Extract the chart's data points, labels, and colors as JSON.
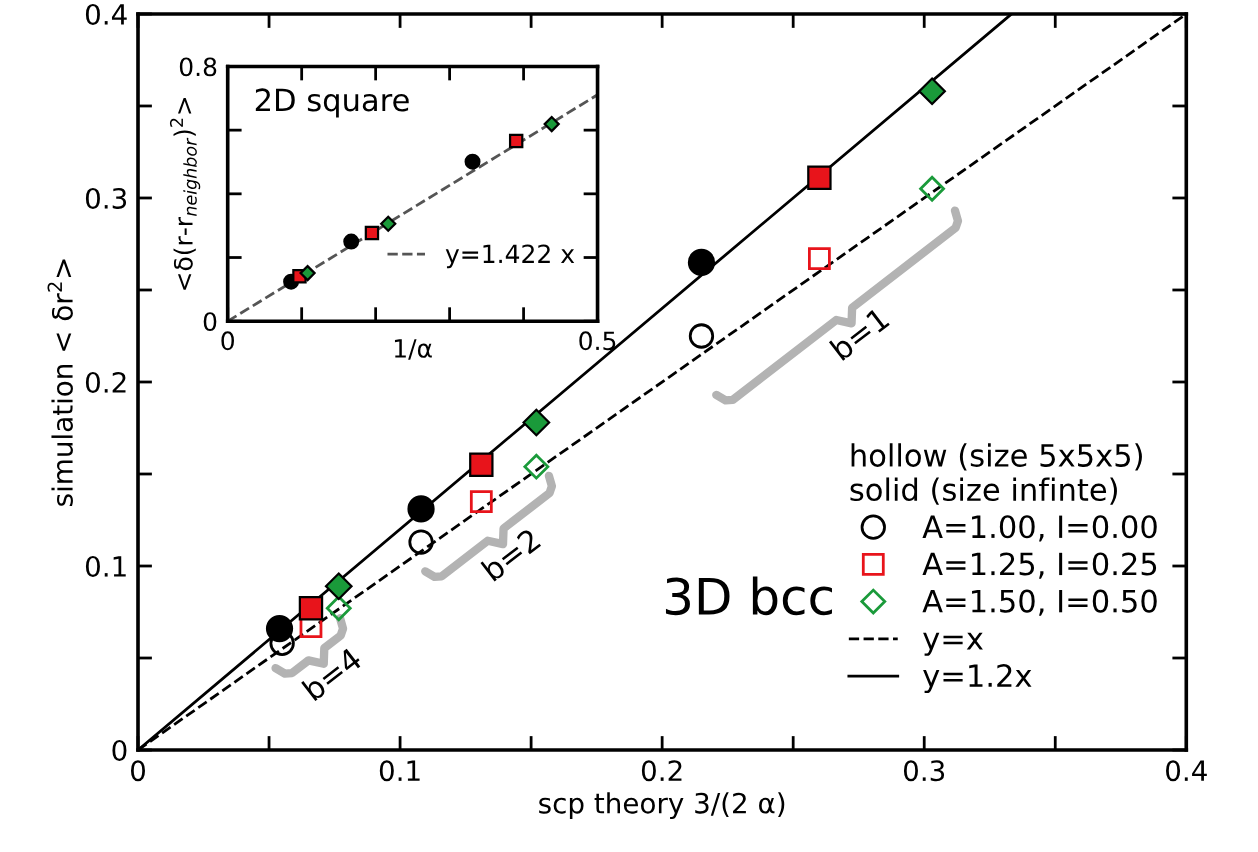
{
  "chart_data": [
    {
      "type": "scatter",
      "xlabel": "scp theory 3/(2 α)",
      "ylabel": "simulation < δr$^{2}$>",
      "legend_title": "hollow (size 5x5x5)\nsolid (size infinte)",
      "xlim": [
        0,
        0.4
      ],
      "ylim": [
        0,
        0.4
      ],
      "xticks": [
        0,
        {
          "value": 0.05,
          "label": null
        },
        0.1,
        {
          "value": 0.15,
          "label": null
        },
        0.2,
        {
          "value": 0.25,
          "label": null
        },
        0.3,
        {
          "value": 0.35,
          "label": null
        },
        0.4
      ],
      "yticks": [
        0,
        {
          "value": 0.05,
          "label": null
        },
        0.1,
        {
          "value": 0.15,
          "label": null
        },
        0.2,
        {
          "value": 0.25,
          "label": null
        },
        0.3,
        {
          "value": 0.35,
          "label": null
        },
        0.4
      ],
      "legend": "bottom right",
      "annotations": [
        "3D bcc",
        "b=4",
        "b=2",
        "b=1"
      ],
      "series": [
        {
          "name": "A=1.00, I=0.00",
          "color": "#000000",
          "marker": "circle",
          "x": [
            0.055,
            0.108,
            0.215
          ],
          "values": [
            0.058,
            0.113,
            0.225
          ]
        },
        {
          "name": "A=1.25, I=0.25",
          "color": "#e8141b",
          "marker": "square",
          "x": [
            0.066,
            0.131,
            0.26
          ],
          "values": [
            0.067,
            0.135,
            0.267
          ]
        },
        {
          "name": "A=1.50, I=0.50",
          "color": "#1a9a3a",
          "marker": "diamond",
          "x": [
            0.0766,
            0.152,
            0.303
          ],
          "values": [
            0.077,
            0.154,
            0.305
          ]
        },
        {
          "color": "#000000",
          "marker": "circle",
          "x": [
            0.054,
            0.108,
            0.215
          ],
          "values": [
            0.066,
            0.131,
            0.265
          ]
        },
        {
          "color": "#e8141b",
          "marker": "square",
          "x": [
            0.066,
            0.131,
            0.26
          ],
          "values": [
            0.077,
            0.155,
            0.311
          ]
        },
        {
          "color": "#1a9a3a",
          "marker": "diamond",
          "x": [
            0.0766,
            0.152,
            0.303
          ],
          "values": [
            0.089,
            0.178,
            0.358
          ]
        },
        {
          "name": "y=x",
          "type": "line",
          "color": "#000000",
          "line_style": "dashed",
          "marker": "none",
          "x": [
            0,
            0.4
          ],
          "values": [
            0,
            0.4
          ]
        },
        {
          "name": "y=1.2x",
          "type": "line",
          "color": "#000000",
          "line_style": "solid",
          "marker": "none",
          "x": [
            0,
            0.3333
          ],
          "values": [
            0,
            0.4
          ]
        }
      ]
    },
    {
      "type": "scatter",
      "xlabel": "1/α",
      "ylabel": "<δ(r-r$_{neighbor}$)$^{2}$>",
      "xlim": [
        0,
        0.5
      ],
      "ylim": [
        0,
        0.8
      ],
      "xticks": [
        0,
        {
          "value": 0.1,
          "label": null
        },
        {
          "value": 0.2,
          "label": null
        },
        {
          "value": 0.3,
          "label": null
        },
        {
          "value": 0.4,
          "label": null
        },
        0.5
      ],
      "yticks": [
        0,
        {
          "value": 0.2,
          "label": null
        },
        {
          "value": 0.4,
          "label": null
        },
        {
          "value": 0.6,
          "label": null
        },
        0.8
      ],
      "legend": "bottom right",
      "annotations": [
        "2D square"
      ],
      "series": [
        {
          "color": "#000000",
          "marker": "circle",
          "x": [
            0.0857,
            0.167,
            0.331
          ],
          "values": [
            0.124,
            0.25,
            0.501
          ]
        },
        {
          "color": "#e8141b",
          "marker": "square",
          "x": [
            0.097,
            0.195,
            0.39
          ],
          "values": [
            0.141,
            0.277,
            0.566
          ]
        },
        {
          "color": "#1a9a3a",
          "marker": "diamond",
          "x": [
            0.108,
            0.217,
            0.438
          ],
          "values": [
            0.151,
            0.306,
            0.619
          ]
        },
        {
          "name": "y=1.422 x",
          "type": "line",
          "color": "#555555",
          "line_style": "dashed",
          "marker": "none",
          "x": [
            0,
            0.5
          ],
          "values": [
            0,
            0.711
          ]
        }
      ]
    }
  ]
}
